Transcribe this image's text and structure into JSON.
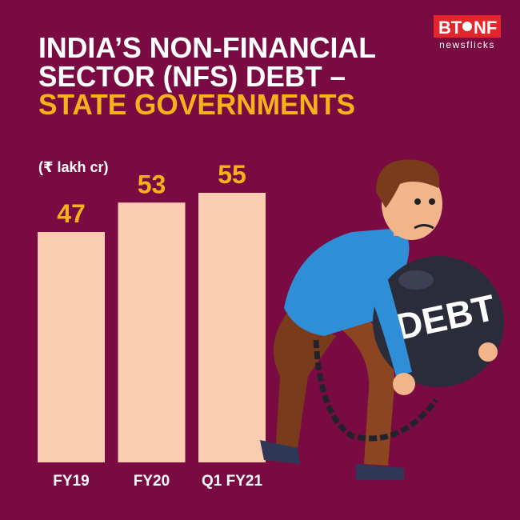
{
  "logo": {
    "left": "BT",
    "right": "NF",
    "tagline": "newsflicks"
  },
  "illustration_text": "DEBT",
  "chart_data": {
    "type": "bar",
    "title": [
      "INDIA’S NON-FINANCIAL",
      "SECTOR (NFS) DEBT –"
    ],
    "subtitle": "STATE GOVERNMENTS",
    "unit": "(₹ lakh cr)",
    "categories": [
      "FY19",
      "FY20",
      "Q1 FY21"
    ],
    "values": [
      47,
      53,
      55
    ],
    "color": "#fbcdb0"
  }
}
